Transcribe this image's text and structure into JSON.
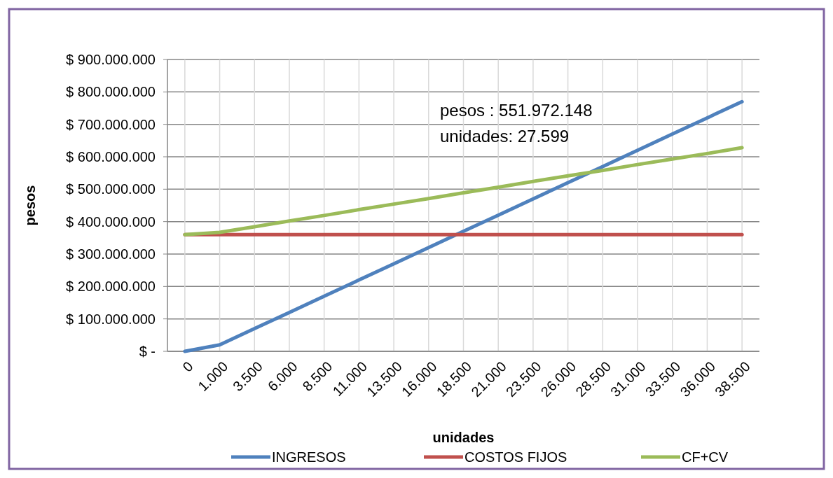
{
  "chart_data": {
    "type": "line",
    "xlabel": "unidades",
    "ylabel": "pesos",
    "categories": [
      "0",
      "1.000",
      "3.500",
      "6.000",
      "8.500",
      "11.000",
      "13.500",
      "16.000",
      "18.500",
      "21.000",
      "23.500",
      "26.000",
      "28.500",
      "31.000",
      "33.500",
      "36.000",
      "38.500"
    ],
    "series": [
      {
        "name": "INGRESOS",
        "color": "#4f81bd",
        "values": [
          0,
          20000000,
          70000000,
          120000000,
          170000000,
          220000000,
          270000000,
          320000000,
          370000000,
          420000000,
          470000000,
          520000000,
          570000000,
          620000000,
          670000000,
          720000000,
          770000000
        ]
      },
      {
        "name": "COSTOS FIJOS",
        "color": "#c0504d",
        "values": [
          360000000,
          360000000,
          360000000,
          360000000,
          360000000,
          360000000,
          360000000,
          360000000,
          360000000,
          360000000,
          360000000,
          360000000,
          360000000,
          360000000,
          360000000,
          360000000,
          360000000
        ]
      },
      {
        "name": "CF+CV",
        "color": "#9bbb59",
        "values": [
          360000000,
          367000000,
          384000000,
          402000000,
          419000000,
          437000000,
          454000000,
          471000000,
          489000000,
          506000000,
          524000000,
          541000000,
          558000000,
          576000000,
          593000000,
          610000000,
          628000000
        ]
      }
    ],
    "ylim": [
      0,
      900000000
    ],
    "yticks": [
      {
        "value": 0,
        "label": "$ -"
      },
      {
        "value": 100000000,
        "label": "$ 100.000.000"
      },
      {
        "value": 200000000,
        "label": "$ 200.000.000"
      },
      {
        "value": 300000000,
        "label": "$ 300.000.000"
      },
      {
        "value": 400000000,
        "label": "$ 400.000.000"
      },
      {
        "value": 500000000,
        "label": "$ 500.000.000"
      },
      {
        "value": 600000000,
        "label": "$ 600.000.000"
      },
      {
        "value": 700000000,
        "label": "$ 700.000.000"
      },
      {
        "value": 800000000,
        "label": "$ 800.000.000"
      },
      {
        "value": 900000000,
        "label": "$ 900.000.000"
      }
    ],
    "annotations": [
      "pesos : 551.972.148",
      "unidades: 27.599"
    ],
    "grid": true,
    "legend": "bottom",
    "marker": "none",
    "line_style": "solid"
  }
}
